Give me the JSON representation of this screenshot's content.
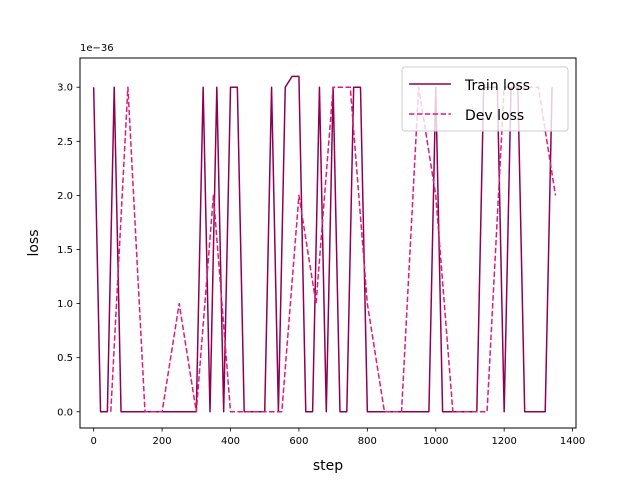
{
  "chart_data": {
    "type": "line",
    "xlabel": "step",
    "ylabel": "loss",
    "y_offset_label": "1e−36",
    "xlim": [
      -40,
      1410
    ],
    "ylim": [
      -0.15,
      3.27
    ],
    "x_ticks": [
      0,
      200,
      400,
      600,
      800,
      1000,
      1200,
      1400
    ],
    "y_ticks": [
      0.0,
      0.5,
      1.0,
      1.5,
      2.0,
      2.5,
      3.0
    ],
    "y_tick_labels": [
      "0.0",
      "0.5",
      "1.0",
      "1.5",
      "2.0",
      "2.5",
      "3.0"
    ],
    "legend_position": "upper right",
    "grid": false,
    "series": [
      {
        "name": "Train loss",
        "color": "#8e0152",
        "style": "solid",
        "x": [
          0,
          20,
          40,
          60,
          80,
          100,
          120,
          140,
          160,
          180,
          200,
          220,
          240,
          260,
          280,
          300,
          320,
          340,
          360,
          380,
          400,
          420,
          440,
          460,
          480,
          500,
          520,
          540,
          560,
          580,
          600,
          620,
          640,
          660,
          680,
          700,
          720,
          740,
          760,
          780,
          800,
          820,
          840,
          860,
          880,
          900,
          920,
          940,
          960,
          980,
          1000,
          1020,
          1040,
          1060,
          1080,
          1100,
          1120,
          1140,
          1160,
          1180,
          1200,
          1220,
          1240,
          1260,
          1280,
          1300,
          1320,
          1340
        ],
        "y": [
          3.0,
          0,
          0,
          3.0,
          0,
          0,
          0,
          0,
          0,
          0,
          0,
          0,
          0,
          0,
          0,
          0,
          3.0,
          0,
          3.0,
          0,
          3.0,
          3.0,
          0,
          0,
          0,
          0,
          3.0,
          0,
          3.0,
          3.1,
          3.1,
          0,
          0,
          3.0,
          0,
          3.0,
          0,
          0,
          3.0,
          3.0,
          0,
          0,
          0,
          0,
          0,
          0,
          0,
          0,
          0,
          0,
          3.0,
          0,
          0,
          0,
          0,
          0,
          0,
          3.0,
          3.0,
          3.0,
          0,
          3.0,
          3.0,
          0,
          0,
          0,
          0,
          3.0
        ]
      },
      {
        "name": "Dev loss",
        "color": "#dd1c77",
        "style": "dashed",
        "x": [
          50,
          100,
          150,
          200,
          250,
          300,
          350,
          400,
          450,
          500,
          550,
          600,
          650,
          700,
          750,
          800,
          850,
          900,
          950,
          1000,
          1050,
          1100,
          1150,
          1200,
          1250,
          1300,
          1350
        ],
        "y": [
          0,
          3.0,
          0,
          0,
          1.0,
          0,
          2.0,
          0,
          0,
          0,
          0,
          2.0,
          1.0,
          3.0,
          3.0,
          1.0,
          0,
          0,
          3.0,
          2.0,
          0,
          0,
          0,
          3.0,
          3.0,
          3.0,
          2.0
        ]
      }
    ]
  }
}
